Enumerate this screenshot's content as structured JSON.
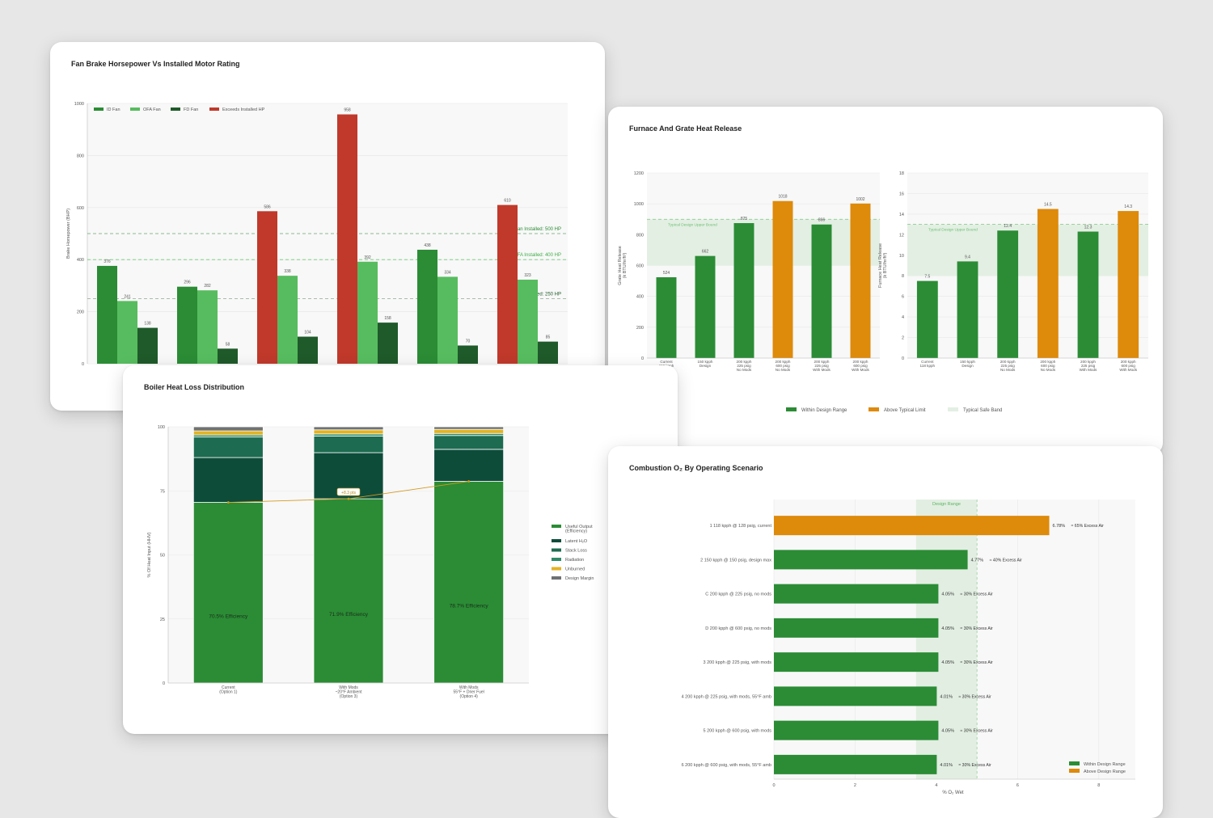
{
  "colors": {
    "id_fan": "#2b8c35",
    "ofa_fan": "#57bc5f",
    "fd_fan": "#1f5a2a",
    "exceeds": "#c0392b",
    "within": "#2b8c35",
    "above": "#de8a0a",
    "safe_band": "#e3efe3",
    "useful": "#2b8c35",
    "latent": "#0e4c3a",
    "stack": "#1d6b50",
    "radiation": "#2d8b68",
    "unburned": "#e3b323",
    "margin": "#6f7272",
    "trend": "#d39a1f"
  },
  "chart_data": [
    {
      "id": "fan",
      "type": "bar",
      "title": "Fan Brake Horsepower Vs Installed Motor Rating",
      "ylabel": "Brake Horsepower (BHP)",
      "ylim": [
        0,
        1000
      ],
      "yticks": [
        "0",
        "200",
        "400",
        "600",
        "800",
        "1000"
      ],
      "yticks_values": [
        0,
        200,
        400,
        600,
        800,
        1000
      ],
      "legend": [
        "ID Fan",
        "OFA Fan",
        "FD Fan",
        "Exceeds Installed HP"
      ],
      "legend_position": "top-left",
      "groups": [
        {
          "values": [
            376,
            241,
            138
          ],
          "exceeds": [
            false,
            false,
            false
          ]
        },
        {
          "values": [
            296,
            282,
            58
          ],
          "exceeds": [
            false,
            false,
            false
          ]
        },
        {
          "values": [
            586,
            338,
            104
          ],
          "exceeds": [
            true,
            false,
            false
          ]
        },
        {
          "values": [
            958,
            392,
            158
          ],
          "exceeds": [
            true,
            false,
            false
          ]
        },
        {
          "values": [
            438,
            334,
            70
          ],
          "exceeds": [
            false,
            false,
            false
          ]
        },
        {
          "values": [
            610,
            323,
            85
          ],
          "exceeds": [
            true,
            false,
            false
          ]
        }
      ],
      "reference_lines": [
        {
          "label": "ID Fan Installed: 500 HP",
          "value": 500
        },
        {
          "label": "OFA Installed: 400 HP",
          "value": 400
        },
        {
          "label": "FD Installed: 250 HP",
          "value": 250
        }
      ]
    },
    {
      "id": "furnace",
      "type": "bar",
      "title": "Furnace And Grate Heat Release",
      "categories": [
        [
          "Current",
          "118 kpph"
        ],
        [
          "150 kpph",
          "Design"
        ],
        [
          "200 kpph",
          "225 psig",
          "No Mods"
        ],
        [
          "200 kpph",
          "600 psig",
          "No Mods"
        ],
        [
          "200 kpph",
          "225 psig",
          "With Mods"
        ],
        [
          "200 kpph",
          "600 psig",
          "With Mods"
        ]
      ],
      "legend": [
        "Within Design Range",
        "Above Typical Limit",
        "Typical Safe Band"
      ],
      "legend_position": "bottom",
      "panels": [
        {
          "ylabel": [
            "Grate Heat Release",
            "(k BTU/hr/ft²)"
          ],
          "ylim": [
            0,
            1200
          ],
          "yticks": [
            "0",
            "200",
            "400",
            "600",
            "800",
            "1000",
            "1200"
          ],
          "yticks_values": [
            0,
            200,
            400,
            600,
            800,
            1000,
            1200
          ],
          "values": [
            524,
            662,
            875,
            1018,
            866,
            1002
          ],
          "labels": [
            "524",
            "662",
            "875",
            "1018",
            "866",
            "1002"
          ],
          "above": [
            false,
            false,
            false,
            true,
            false,
            true
          ],
          "band": [
            600,
            900
          ],
          "upper_bound": 900,
          "upper_bound_label": "Typical Design Upper Bound"
        },
        {
          "ylabel": [
            "Furnace Heat Release",
            "(k BTU/hr/ft³)"
          ],
          "ylim": [
            0,
            18
          ],
          "yticks": [
            "0",
            "2",
            "4",
            "6",
            "8",
            "10",
            "12",
            "14",
            "16",
            "18"
          ],
          "yticks_values": [
            0,
            2,
            4,
            6,
            8,
            10,
            12,
            14,
            16,
            18
          ],
          "values": [
            7.5,
            9.4,
            12.4,
            14.5,
            12.3,
            14.3
          ],
          "labels": [
            "7.5",
            "9.4",
            "12.4",
            "14.5",
            "12.3",
            "14.3"
          ],
          "above": [
            false,
            false,
            false,
            true,
            false,
            true
          ],
          "band": [
            8,
            13
          ],
          "upper_bound": 13,
          "upper_bound_label": "Typical Design Upper Bound"
        }
      ]
    },
    {
      "id": "loss",
      "type": "bar",
      "stacked": true,
      "title": "Boiler Heat Loss Distribution",
      "ylabel": "% Of Heat Input (HHV)",
      "ylim": [
        0,
        100
      ],
      "yticks": [
        "0",
        "25",
        "50",
        "75",
        "100"
      ],
      "yticks_values": [
        0,
        25,
        50,
        75,
        100
      ],
      "categories": [
        [
          "Current",
          "(Option 1)"
        ],
        [
          "With Mods",
          "~20°F Ambient",
          "(Option 3)"
        ],
        [
          "With Mods",
          "55°F + Drier Fuel",
          "(Option 4)"
        ]
      ],
      "series": [
        {
          "name": "Useful Output (Efficiency)",
          "values": [
            70.5,
            71.9,
            78.7
          ]
        },
        {
          "name": "Latent H₂O",
          "values": [
            17.5,
            18.0,
            12.5
          ]
        },
        {
          "name": "Stack Loss",
          "values": [
            8.0,
            6.5,
            5.4
          ]
        },
        {
          "name": "Radiation",
          "values": [
            0.8,
            0.8,
            0.8
          ]
        },
        {
          "name": "Unburned",
          "values": [
            1.6,
            1.6,
            1.6
          ]
        },
        {
          "name": "Design Margin",
          "values": [
            1.6,
            1.2,
            1.0
          ]
        }
      ],
      "legend": [
        [
          "Useful Output",
          "(Efficiency)"
        ],
        [
          "Latent H₂O"
        ],
        [
          "Stack Loss"
        ],
        [
          "Radiation"
        ],
        [
          "Unburned"
        ],
        [
          "Design Margin"
        ]
      ],
      "legend_position": "right",
      "efficiency_labels": [
        "70.5%  Efficiency",
        "71.9%  Efficiency",
        "78.7%  Efficiency"
      ],
      "trend_label": "+8.3 pts"
    },
    {
      "id": "o2",
      "type": "bar",
      "orientation": "horizontal",
      "title": "Combustion O₂ By Operating Scenario",
      "xlabel": "% O₂ Wet",
      "xlim": [
        0,
        8.9
      ],
      "xticks": [
        "0",
        "2",
        "4",
        "6",
        "8"
      ],
      "xticks_values": [
        0,
        2,
        4,
        6,
        8
      ],
      "design_range": [
        3.5,
        5.0
      ],
      "design_range_label": "Design Range",
      "categories": [
        "1   118 kpph @ 128 psig, current",
        "2   150 kpph @ 150 psig, design max",
        "C   200 kpph @ 225 psig, no mods",
        "D   200 kpph @ 600 psig, no mods",
        "3   200 kpph @ 225 psig, with mods",
        "4   200 kpph @ 225 psig, with mods, 55°F amb",
        "5   200 kpph @ 600 psig, with mods",
        "6   200 kpph @ 600 psig, with mods, 55°F amb"
      ],
      "values": [
        6.78,
        4.77,
        4.05,
        4.05,
        4.05,
        4.01,
        4.05,
        4.01
      ],
      "labels": [
        "6.78%",
        "4.77%",
        "4.05%",
        "4.05%",
        "4.05%",
        "4.01%",
        "4.05%",
        "4.01%"
      ],
      "excess_air": [
        "≈ 65% Excess Air",
        "≈ 40% Excess Air",
        "≈ 30% Excess Air",
        "≈ 30% Excess Air",
        "≈ 30% Excess Air",
        "≈ 30% Excess Air",
        "≈ 30% Excess Air",
        "≈ 30% Excess Air"
      ],
      "above": [
        true,
        false,
        false,
        false,
        false,
        false,
        false,
        false
      ],
      "legend": [
        "Within Design Range",
        "Above Design Range"
      ],
      "legend_position": "bottom-right"
    }
  ]
}
